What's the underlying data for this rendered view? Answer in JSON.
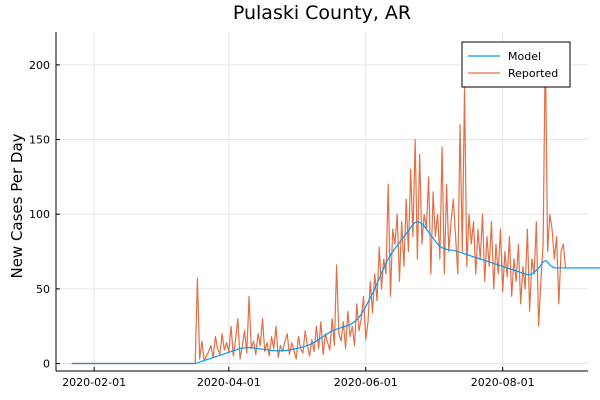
{
  "chart_data": {
    "type": "line",
    "title": "Pulaski County, AR",
    "xlabel": "",
    "ylabel": "New Cases Per Day",
    "x_start": "2020-01-22",
    "x_end": "2020-08-30",
    "xlim": [
      "2020-01-15",
      "2020-09-08"
    ],
    "ylim": [
      -5,
      222
    ],
    "x_ticks": [
      "2020-02-01",
      "2020-04-01",
      "2020-06-01",
      "2020-08-01"
    ],
    "y_ticks": [
      0,
      50,
      100,
      150,
      200
    ],
    "grid": true,
    "legend": "top-right",
    "series": [
      {
        "name": "Model",
        "color": "#009af9",
        "values": [
          0,
          0,
          0,
          0,
          0,
          0,
          0,
          0,
          0,
          0,
          0,
          0,
          0,
          0,
          0,
          0,
          0,
          0,
          0,
          0,
          0,
          0,
          0,
          0,
          0,
          0,
          0,
          0,
          0,
          0,
          0,
          0,
          0,
          0,
          0,
          0,
          0,
          0,
          0,
          0,
          0,
          0,
          0,
          0,
          0,
          0,
          0,
          0,
          0,
          0,
          0,
          0,
          0,
          0,
          0,
          0,
          0.5,
          1,
          1.5,
          2,
          2.5,
          3,
          3.5,
          4,
          4.5,
          5,
          5.5,
          6,
          6.5,
          7,
          7.5,
          8,
          8.5,
          9,
          9.5,
          10,
          10.3,
          10.5,
          10.6,
          10.7,
          10.6,
          10.4,
          10.2,
          10,
          9.8,
          9.6,
          9.4,
          9.2,
          9,
          8.8,
          8.7,
          8.6,
          8.5,
          8.5,
          8.6,
          8.7,
          8.9,
          9.1,
          9.4,
          9.7,
          10,
          10.3,
          10.7,
          11.1,
          11.6,
          12.1,
          12.7,
          13.4,
          14.2,
          15,
          16,
          17,
          18,
          19,
          20,
          21,
          21.8,
          22.5,
          23,
          23.5,
          24,
          24.5,
          25,
          25.5,
          26,
          27,
          28,
          29.5,
          31,
          33,
          35.5,
          38,
          41,
          44,
          47,
          50,
          53.5,
          57,
          60.5,
          64,
          67,
          70,
          72.5,
          75,
          77,
          79,
          81,
          83,
          85,
          87,
          89,
          91,
          93,
          94.5,
          95,
          94.5,
          93.5,
          92,
          90,
          88,
          86,
          84,
          82,
          80,
          78.5,
          77.5,
          77,
          76.5,
          76,
          76,
          75.8,
          75.5,
          75,
          74.5,
          74,
          73.5,
          73,
          72.5,
          72,
          71.5,
          71,
          70.5,
          70,
          69.5,
          69,
          68.5,
          68,
          67.5,
          67,
          66.5,
          66,
          65.5,
          65,
          64.5,
          64,
          63.5,
          63,
          62.5,
          62,
          61.5,
          61,
          60.5,
          60,
          59.5,
          59.5,
          60,
          61,
          62.5,
          64,
          66,
          68,
          69,
          68,
          66,
          65,
          64,
          64,
          64,
          64,
          64,
          64,
          64,
          64,
          64,
          64,
          64,
          64,
          64,
          64,
          64,
          64,
          64,
          64,
          64,
          64,
          64,
          64,
          64,
          64,
          64
        ]
      },
      {
        "name": "Reported",
        "color": "#e26f46",
        "values": [
          0,
          0,
          0,
          0,
          0,
          0,
          0,
          0,
          0,
          0,
          0,
          0,
          0,
          0,
          0,
          0,
          0,
          0,
          0,
          0,
          0,
          0,
          0,
          0,
          0,
          0,
          0,
          0,
          0,
          0,
          0,
          0,
          0,
          0,
          0,
          0,
          0,
          0,
          0,
          0,
          0,
          0,
          0,
          0,
          0,
          0,
          0,
          0,
          0,
          0,
          0,
          0,
          0,
          0,
          0,
          0,
          57,
          3,
          15,
          2,
          5,
          8,
          12,
          4,
          18,
          10,
          6,
          20,
          9,
          14,
          8,
          25,
          5,
          16,
          30,
          3,
          12,
          22,
          7,
          45,
          10,
          15,
          6,
          20,
          12,
          30,
          8,
          14,
          5,
          18,
          10,
          25,
          4,
          12,
          8,
          15,
          20,
          6,
          14,
          9,
          3,
          18,
          10,
          7,
          22,
          12,
          5,
          16,
          8,
          25,
          10,
          28,
          6,
          20,
          14,
          9,
          30,
          12,
          66,
          20,
          15,
          28,
          10,
          35,
          18,
          25,
          12,
          40,
          22,
          30,
          45,
          16,
          28,
          55,
          34,
          60,
          42,
          78,
          50,
          70,
          60,
          120,
          45,
          90,
          80,
          100,
          55,
          95,
          65,
          110,
          75,
          130,
          85,
          150,
          70,
          140,
          80,
          100,
          90,
          125,
          60,
          115,
          85,
          100,
          70,
          145,
          60,
          120,
          75,
          95,
          110,
          85,
          60,
          160,
          75,
          185,
          65,
          100,
          80,
          95,
          60,
          90,
          70,
          100,
          55,
          85,
          65,
          95,
          50,
          80,
          60,
          90,
          48,
          75,
          58,
          85,
          45,
          70,
          55,
          80,
          40,
          65,
          50,
          90,
          35,
          70,
          60,
          95,
          25,
          55,
          80,
          215,
          75,
          100,
          90,
          70,
          85,
          40,
          75,
          80,
          64,
          64,
          64,
          64,
          64,
          64,
          64,
          64,
          64,
          64,
          64,
          64,
          64,
          64,
          64,
          64,
          64,
          64,
          64,
          64
        ]
      }
    ]
  }
}
